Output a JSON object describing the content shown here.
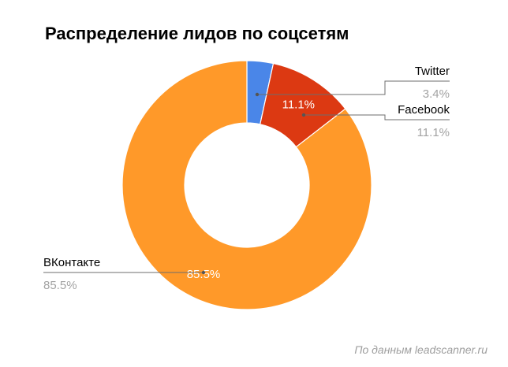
{
  "chart_data": {
    "type": "pie",
    "variant": "donut",
    "title": "Распределение лидов по соцсетям",
    "slices": [
      {
        "label": "Twitter",
        "value": 3.4,
        "label_text": "3.4%",
        "inner_label": "",
        "color": "#4a86e8"
      },
      {
        "label": "Facebook",
        "value": 11.1,
        "label_text": "11.1%",
        "inner_label": "11.1%",
        "color": "#dc3912"
      },
      {
        "label": "ВКонтакте",
        "value": 85.5,
        "label_text": "85.5%",
        "inner_label": "85.5%",
        "color": "#ff9929"
      }
    ],
    "legend": "labeled-leaders",
    "annotation": "По данным leadscanner.ru"
  }
}
